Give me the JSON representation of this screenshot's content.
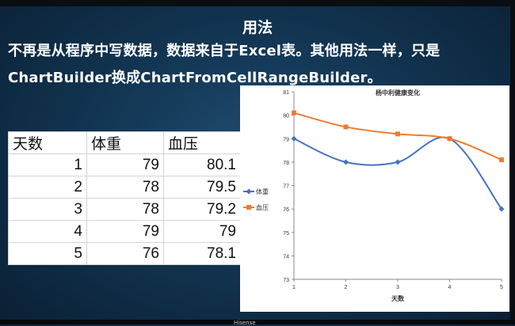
{
  "slide": {
    "title": "用法",
    "line1": "不再是从程序中写数据，数据来自于Excel表。其他用法一样，只是",
    "line2": "ChartBuilder换成ChartFromCellRangeBuilder。"
  },
  "table": {
    "headers": [
      "天数",
      "体重",
      "血压"
    ],
    "rows": [
      [
        "1",
        "79",
        "80.1"
      ],
      [
        "2",
        "78",
        "79.5"
      ],
      [
        "3",
        "78",
        "79.2"
      ],
      [
        "4",
        "79",
        "79"
      ],
      [
        "5",
        "76",
        "78.1"
      ]
    ]
  },
  "chart_data": {
    "type": "line",
    "title": "杨中利健康变化",
    "xlabel": "天数",
    "ylabel": "",
    "x": [
      1,
      2,
      3,
      4,
      5
    ],
    "xlim": [
      1,
      5
    ],
    "ylim": [
      73,
      81
    ],
    "yticks": [
      73,
      74,
      75,
      76,
      77,
      78,
      79,
      80,
      81
    ],
    "smooth": true,
    "grid": false,
    "legend_position": "left",
    "series": [
      {
        "name": "体重",
        "values": [
          79,
          78,
          78,
          79,
          76
        ],
        "color": "#4472C4",
        "marker": "diamond"
      },
      {
        "name": "血压",
        "values": [
          80.1,
          79.5,
          79.2,
          79,
          78.1
        ],
        "color": "#ED7D31",
        "marker": "square"
      }
    ]
  },
  "footer": {
    "brand": "Hisense"
  },
  "colors": {
    "background": "#123552",
    "text": "#ffffff"
  }
}
